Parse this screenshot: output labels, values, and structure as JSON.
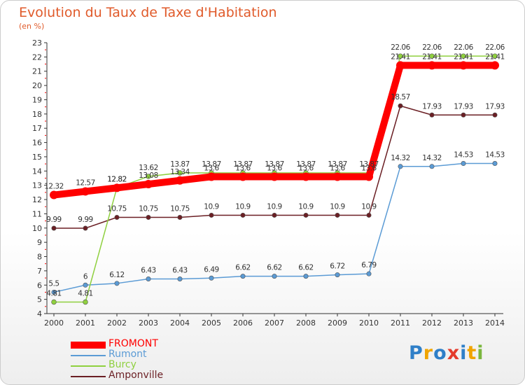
{
  "header": {
    "title": "Evolution du Taux de Taxe d'Habitation",
    "subtitle": "(en %)"
  },
  "logo": {
    "letters": [
      {
        "char": "P",
        "color": "#2f7fc8"
      },
      {
        "char": "r",
        "color": "#f0a400"
      },
      {
        "char": "o",
        "color": "#2f7fc8"
      },
      {
        "char": "x",
        "color": "#e43b2c"
      },
      {
        "char": "i",
        "color": "#2f7fc8"
      },
      {
        "char": "t",
        "color": "#f0a400"
      },
      {
        "char": "i",
        "color": "#7ab63d"
      }
    ]
  },
  "chart_data": {
    "type": "line",
    "title": "Evolution du Taux de Taxe d'Habitation",
    "subtitle": "(en %)",
    "xlabel": "",
    "ylabel": "",
    "x": [
      "2000",
      "2001",
      "2002",
      "2003",
      "2004",
      "2005",
      "2006",
      "2007",
      "2008",
      "2009",
      "2010",
      "2011",
      "2012",
      "2013",
      "2014"
    ],
    "yticks": [
      "4",
      "5",
      "6",
      "7",
      "8",
      "9",
      "10",
      "11",
      "12",
      "13",
      "14",
      "15",
      "16",
      "17",
      "18",
      "19",
      "20",
      "21",
      "22",
      "23"
    ],
    "ylim": [
      4,
      23
    ],
    "grid": false,
    "legend_position": "bottom-left",
    "series": [
      {
        "name": "FROMONT",
        "color": "#ff0000",
        "values": [
          12.32,
          12.57,
          12.82,
          13.08,
          13.34,
          13.6,
          13.6,
          13.6,
          13.6,
          13.6,
          13.6,
          21.41,
          21.41,
          21.41,
          21.41
        ],
        "labels": [
          "12.32",
          "12.57",
          "12.82",
          "13.08",
          "13.34",
          "13.6",
          "13.6",
          "13.6",
          "13.6",
          "13.6",
          "13.6",
          "21.41",
          "21.41",
          "21.41",
          "21.41"
        ]
      },
      {
        "name": "Rumont",
        "color": "#5b9bd5",
        "values": [
          5.5,
          6,
          6.12,
          6.43,
          6.43,
          6.49,
          6.62,
          6.62,
          6.62,
          6.72,
          6.79,
          14.32,
          14.32,
          14.53,
          14.53
        ],
        "labels": [
          "5.5",
          "6",
          "6.12",
          "6.43",
          "6.43",
          "6.49",
          "6.62",
          "6.62",
          "6.62",
          "6.72",
          "6.79",
          "14.32",
          "14.32",
          "14.53",
          "14.53"
        ]
      },
      {
        "name": "Burcy",
        "color": "#8fd03f",
        "values": [
          4.81,
          4.81,
          12.82,
          13.62,
          13.87,
          13.87,
          13.87,
          13.87,
          13.87,
          13.87,
          13.87,
          22.06,
          22.06,
          22.06,
          22.06
        ],
        "labels": [
          "4.81",
          "4.81",
          "12.82",
          "13.62",
          "13.87",
          "13.87",
          "13.87",
          "13.87",
          "13.87",
          "13.87",
          "13.87",
          "22.06",
          "22.06",
          "22.06",
          "22.06"
        ]
      },
      {
        "name": "Amponville",
        "color": "#6b1f24",
        "values": [
          9.99,
          9.99,
          10.75,
          10.75,
          10.75,
          10.9,
          10.9,
          10.9,
          10.9,
          10.9,
          10.9,
          18.57,
          17.93,
          17.93,
          17.93
        ],
        "labels": [
          "9.99",
          "9.99",
          "10.75",
          "10.75",
          "10.75",
          "10.9",
          "10.9",
          "10.9",
          "10.9",
          "10.9",
          "10.9",
          "18.57",
          "17.93",
          "17.93",
          "17.93"
        ]
      }
    ]
  }
}
